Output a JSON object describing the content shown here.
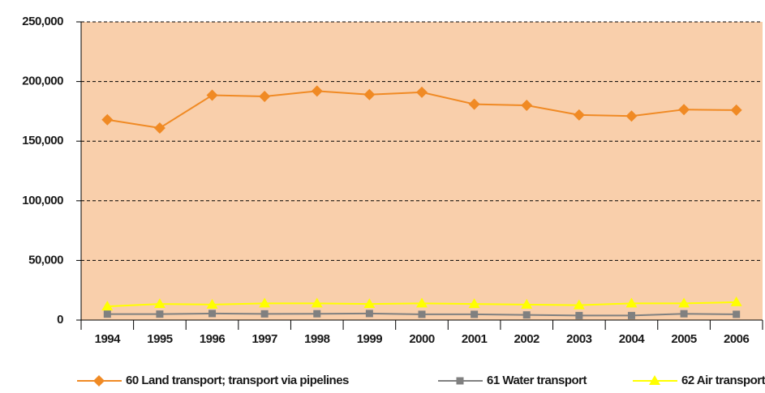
{
  "chart_data": {
    "type": "line",
    "categories": [
      "1994",
      "1995",
      "1996",
      "1997",
      "1998",
      "1999",
      "2000",
      "2001",
      "2002",
      "2003",
      "2004",
      "2005",
      "2006"
    ],
    "series": [
      {
        "name": "60 Land transport; transport via pipelines",
        "color": "#f08a24",
        "marker": "diamond",
        "values": [
          168000,
          161000,
          188500,
          187500,
          192000,
          189000,
          191000,
          181000,
          180000,
          172000,
          171000,
          176500,
          176000
        ]
      },
      {
        "name": "61 Water transport",
        "color": "#808080",
        "marker": "square",
        "values": [
          5000,
          5000,
          5500,
          5200,
          5300,
          5500,
          4800,
          4800,
          4300,
          3800,
          3800,
          5300,
          4800
        ]
      },
      {
        "name": "62 Air transport",
        "color": "#ffff00",
        "marker": "triangle",
        "values": [
          11500,
          13500,
          13000,
          14000,
          14000,
          13500,
          14000,
          13500,
          13000,
          12500,
          14000,
          14000,
          15000
        ]
      }
    ],
    "ylim": [
      0,
      250000
    ],
    "yticks": [
      0,
      {
        "value": 50000,
        "label": "50,000"
      },
      {
        "value": 100000,
        "label": "100,000"
      },
      {
        "value": 150000,
        "label": "150,000"
      },
      {
        "value": 200000,
        "label": "200,000"
      },
      {
        "value": 250000,
        "label": "250,000"
      }
    ],
    "grid": true,
    "plot_background": "#f9cfab",
    "legend": "bottom"
  }
}
